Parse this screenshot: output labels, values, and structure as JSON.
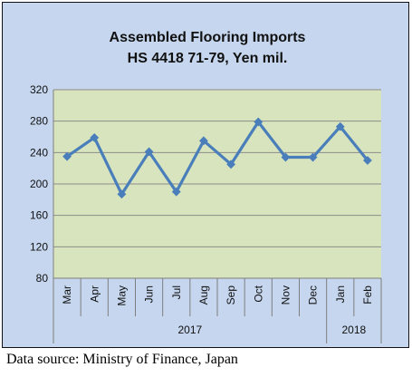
{
  "chart_data": {
    "type": "line",
    "title": "Assembled Flooring Imports",
    "subtitle": "HS 4418 71-79, Yen mil.",
    "xlabel": "",
    "ylabel": "",
    "categories": [
      "Mar",
      "Apr",
      "May",
      "Jun",
      "Jul",
      "Aug",
      "Sep",
      "Oct",
      "Nov",
      "Dec",
      "Jan",
      "Feb"
    ],
    "year_groups": [
      {
        "label": "2017",
        "count": 10
      },
      {
        "label": "2018",
        "count": 2
      }
    ],
    "series": [
      {
        "values": [
          235,
          259,
          187,
          241,
          190,
          255,
          225,
          279,
          234,
          234,
          273,
          230
        ]
      }
    ],
    "ylim": [
      80,
      320
    ],
    "yticks": [
      80,
      120,
      160,
      200,
      240,
      280,
      320
    ],
    "grid": true,
    "legend": "none",
    "colors": {
      "frame_background": "#c5d6ee",
      "plot_background": "#d7e4bd",
      "line": "#4a7ebb",
      "gridline": "#8c8c8c"
    }
  },
  "footer": {
    "source": "Data source: Ministry of Finance, Japan"
  }
}
